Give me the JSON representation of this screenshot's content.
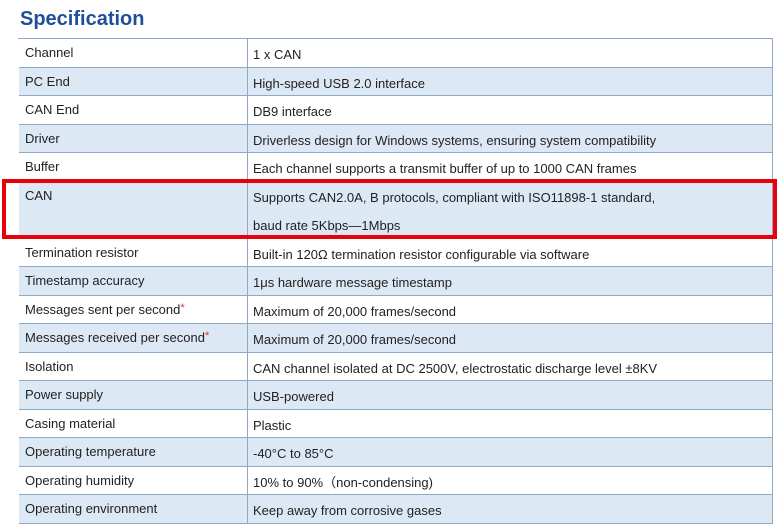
{
  "title": "Specification",
  "table": {
    "rows": [
      {
        "label": "Channel",
        "value": "1 x CAN"
      },
      {
        "label": "PC End",
        "value": "High-speed USB 2.0 interface"
      },
      {
        "label": "CAN End",
        "value": "DB9 interface"
      },
      {
        "label": "Driver",
        "value": "Driverless design for Windows systems, ensuring system compatibility"
      },
      {
        "label": "Buffer",
        "value": "Each channel supports a transmit buffer of up to 1000 CAN frames"
      },
      {
        "label": "CAN",
        "value": [
          "Supports CAN2.0A, B protocols, compliant with ISO11898-1 standard,",
          "baud rate 5Kbps—1Mbps"
        ]
      },
      {
        "label": "Termination resistor",
        "value": "Built-in 120Ω termination resistor configurable via software"
      },
      {
        "label": "Timestamp accuracy",
        "value": "1μs hardware message timestamp"
      },
      {
        "label": "Messages sent per second",
        "mark": "*",
        "value": "Maximum of 20,000 frames/second"
      },
      {
        "label": "Messages received per second",
        "mark": "*",
        "value": "Maximum of 20,000 frames/second"
      },
      {
        "label": "Isolation",
        "value": "CAN channel isolated at DC 2500V, electrostatic discharge level ±8KV"
      },
      {
        "label": "Power supply",
        "value": "USB-powered"
      },
      {
        "label": "Casing material",
        "value": "Plastic"
      },
      {
        "label": "Operating temperature",
        "value": "-40°C to 85°C"
      },
      {
        "label": "Operating humidity",
        "value": "10% to 90%（non-condensing)"
      },
      {
        "label": "Operating environment",
        "value": "Keep away from corrosive gases"
      }
    ]
  }
}
